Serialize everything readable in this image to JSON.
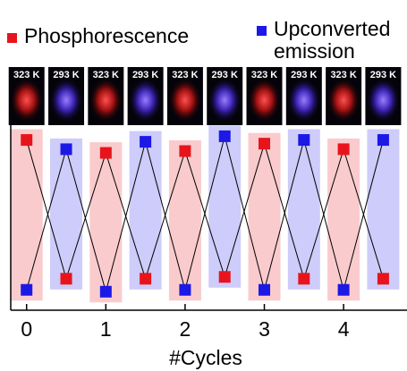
{
  "chart_data": {
    "type": "line",
    "x_label": "#Cycles",
    "image_labels": [
      "323 K",
      "293 K",
      "323 K",
      "293 K",
      "323 K",
      "293 K",
      "323 K",
      "293 K",
      "323 K",
      "293 K"
    ],
    "x": [
      0,
      0.5,
      1,
      1.5,
      2,
      2.5,
      3,
      3.5,
      4,
      4.5
    ],
    "series": [
      {
        "name": "Phosphorescence",
        "color": "#e8141c",
        "values": [
          0.92,
          0.17,
          0.85,
          0.17,
          0.86,
          0.18,
          0.9,
          0.17,
          0.87,
          0.17
        ]
      },
      {
        "name": "Upconverted emission",
        "color": "#1c18e6",
        "values": [
          0.11,
          0.87,
          0.1,
          0.91,
          0.11,
          0.94,
          0.11,
          0.92,
          0.11,
          0.92
        ]
      }
    ],
    "xlim": [
      -0.2,
      4.8
    ],
    "xticks": [
      0,
      1,
      2,
      3,
      4
    ],
    "ylim": [
      0,
      1
    ]
  }
}
